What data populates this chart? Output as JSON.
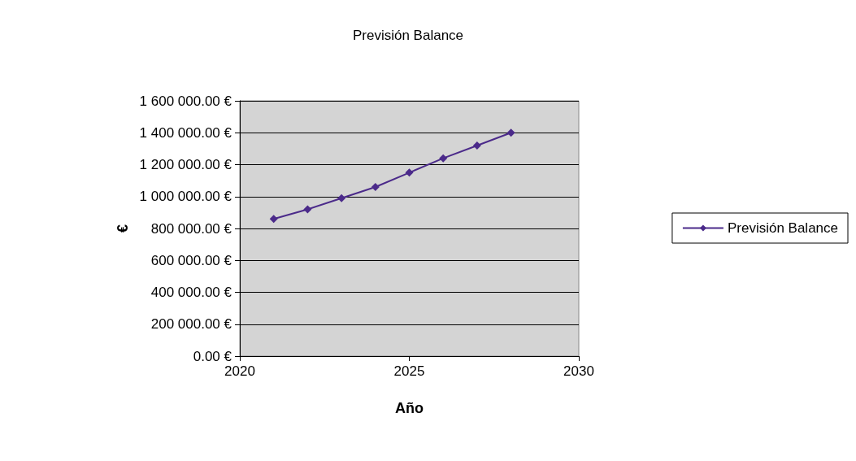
{
  "chart_data": {
    "type": "line",
    "title": "Previsión Balance",
    "xlabel": "Año",
    "ylabel": "€",
    "x": [
      2021,
      2022,
      2023,
      2024,
      2025,
      2026,
      2027,
      2028
    ],
    "series": [
      {
        "name": "Previsión Balance",
        "color": "#4b2a8a",
        "values": [
          860000,
          920000,
          990000,
          1060000,
          1150000,
          1240000,
          1320000,
          1400000
        ]
      }
    ],
    "xlim": [
      2020,
      2030
    ],
    "xticks": [
      2020,
      2025,
      2030
    ],
    "ylim": [
      0,
      1600000
    ],
    "yticks": [
      {
        "value": 0,
        "label": "0.00 €"
      },
      {
        "value": 200000,
        "label": "200 000.00 €"
      },
      {
        "value": 400000,
        "label": "400 000.00 €"
      },
      {
        "value": 600000,
        "label": "600 000.00 €"
      },
      {
        "value": 800000,
        "label": "800 000.00 €"
      },
      {
        "value": 1000000,
        "label": "1 000 000.00 €"
      },
      {
        "value": 1200000,
        "label": "1 200 000.00 €"
      },
      {
        "value": 1400000,
        "label": "1 400 000.00 €"
      },
      {
        "value": 1600000,
        "label": "1 600 000.00 €"
      }
    ],
    "grid": "y",
    "legend": "right",
    "marker": "diamond",
    "line_style": "solid"
  }
}
